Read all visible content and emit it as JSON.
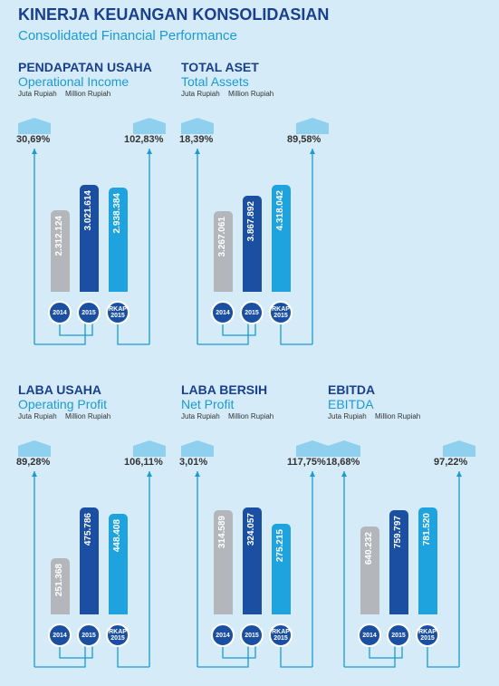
{
  "header": {
    "title": "KINERJA KEUANGAN KONSOLIDASIAN",
    "subtitle": "Consolidated Financial Performance"
  },
  "chart_data": [
    {
      "type": "bar",
      "title": "PENDAPATAN USAHA",
      "subtitle": "Operational Income",
      "unit": "Juta Rupiah",
      "unit_en": "Million Rupiah",
      "categories": [
        "2014",
        "2015",
        "RKAP 2015"
      ],
      "values": [
        2312124,
        3021614,
        2938384
      ],
      "value_labels": [
        "2.312.124",
        "3.021.614",
        "2.938.384"
      ],
      "colors": [
        "#b3b6ba",
        "#1b4fa2",
        "#1ea3de"
      ],
      "annotations": [
        "30,69%",
        "102,83%"
      ]
    },
    {
      "type": "bar",
      "title": "TOTAL ASET",
      "subtitle": "Total Assets",
      "unit": "Juta Rupiah",
      "unit_en": "Million Rupiah",
      "categories": [
        "2014",
        "2015",
        "RKAP 2015"
      ],
      "values": [
        3267061,
        3867892,
        4318042
      ],
      "value_labels": [
        "3.267.061",
        "3.867.892",
        "4.318.042"
      ],
      "colors": [
        "#b3b6ba",
        "#1b4fa2",
        "#1ea3de"
      ],
      "annotations": [
        "18,39%",
        "89,58%"
      ]
    },
    {
      "type": "bar",
      "title": "LABA USAHA",
      "subtitle": "Operating Profit",
      "unit": "Juta Rupiah",
      "unit_en": "Million Rupiah",
      "categories": [
        "2014",
        "2015",
        "RKAP 2015"
      ],
      "values": [
        251368,
        475786,
        448408
      ],
      "value_labels": [
        "251.368",
        "475.786",
        "448.408"
      ],
      "colors": [
        "#b3b6ba",
        "#1b4fa2",
        "#1ea3de"
      ],
      "annotations": [
        "89,28%",
        "106,11%"
      ]
    },
    {
      "type": "bar",
      "title": "LABA BERSIH",
      "subtitle": "Net Profit",
      "unit": "Juta Rupiah",
      "unit_en": "Million Rupiah",
      "categories": [
        "2014",
        "2015",
        "RKAP 2015"
      ],
      "values": [
        314589,
        324057,
        275215
      ],
      "value_labels": [
        "314.589",
        "324.057",
        "275.215"
      ],
      "colors": [
        "#b3b6ba",
        "#1b4fa2",
        "#1ea3de"
      ],
      "annotations": [
        "3,01%",
        "117,75%"
      ]
    },
    {
      "type": "bar",
      "title": "EBITDA",
      "subtitle": "EBITDA",
      "unit": "Juta Rupiah",
      "unit_en": "Million Rupiah",
      "categories": [
        "2014",
        "2015",
        "RKAP 2015"
      ],
      "values": [
        640232,
        759797,
        781520
      ],
      "value_labels": [
        "640.232",
        "759.797",
        "781.520"
      ],
      "colors": [
        "#b3b6ba",
        "#1b4fa2",
        "#1ea3de"
      ],
      "annotations": [
        "18,68%",
        "97,22%"
      ]
    }
  ]
}
